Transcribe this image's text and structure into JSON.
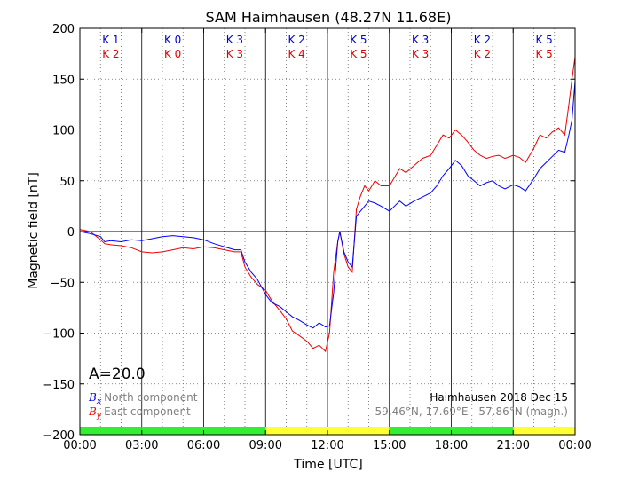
{
  "chart_data": {
    "type": "line",
    "title": "SAM Haimhausen (48.27N 11.68E)",
    "xlabel": "Time [UTC]",
    "ylabel": "Magnetic field [nT]",
    "x_unit": "hours UTC",
    "xlim": [
      0,
      24
    ],
    "ylim": [
      -200,
      200
    ],
    "x_ticks": [
      0,
      3,
      6,
      9,
      12,
      15,
      18,
      21,
      24
    ],
    "x_tick_labels": [
      "00:00",
      "03:00",
      "06:00",
      "09:00",
      "12:00",
      "15:00",
      "18:00",
      "21:00",
      "00:00"
    ],
    "y_ticks": [
      -200,
      -150,
      -100,
      -50,
      0,
      50,
      100,
      150,
      200
    ],
    "y_tick_labels": [
      "−200",
      "−150",
      "−100",
      "−50",
      "0",
      "50",
      "100",
      "150",
      "200"
    ],
    "grid": true,
    "k_index": {
      "row1": [
        "K 1",
        "K 0",
        "K 3",
        "K 2",
        "K 5",
        "K 3",
        "K 2",
        "K 5"
      ],
      "row2": [
        "K 2",
        "K 0",
        "K 3",
        "K 4",
        "K 5",
        "K 3",
        "K 2",
        "K 5"
      ],
      "row1_color": "#0000cc",
      "row2_color": "#dd0000"
    },
    "activity_bar": [
      {
        "color": "#33ee33"
      },
      {
        "color": "#33ee33"
      },
      {
        "color": "#33ee33"
      },
      {
        "color": "#ffff33"
      },
      {
        "color": "#ffff33"
      },
      {
        "color": "#33ee33"
      },
      {
        "color": "#33ee33"
      },
      {
        "color": "#ffff33"
      }
    ],
    "series": [
      {
        "name": "North component",
        "symbol": "B",
        "subscript": "x",
        "color": "#0000ff",
        "x": [
          0,
          0.5,
          1.0,
          1.2,
          1.5,
          2,
          2.5,
          3,
          3.5,
          4,
          4.5,
          5,
          5.5,
          6,
          6.5,
          7,
          7.5,
          7.8,
          8,
          8.3,
          8.6,
          9,
          9.3,
          9.7,
          10,
          10.3,
          10.6,
          11,
          11.3,
          11.6,
          11.9,
          12.1,
          12.3,
          12.5,
          12.6,
          12.8,
          13.0,
          13.2,
          13.4,
          13.6,
          13.8,
          14,
          14.3,
          14.6,
          15,
          15.3,
          15.5,
          15.8,
          16.2,
          16.6,
          17,
          17.3,
          17.6,
          17.9,
          18.2,
          18.5,
          18.8,
          19.1,
          19.4,
          19.7,
          20,
          20.3,
          20.6,
          21,
          21.3,
          21.6,
          22,
          22.3,
          22.6,
          22.9,
          23.2,
          23.5,
          23.7,
          23.85,
          24
        ],
        "y": [
          0,
          -2,
          -5,
          -10,
          -9,
          -10,
          -8,
          -9,
          -7,
          -5,
          -4,
          -5,
          -6,
          -8,
          -12,
          -15,
          -18,
          -18,
          -30,
          -40,
          -47,
          -62,
          -70,
          -74,
          -79,
          -84,
          -87,
          -92,
          -95,
          -90,
          -94,
          -93,
          -60,
          -10,
          0,
          -20,
          -30,
          -35,
          15,
          20,
          25,
          30,
          28,
          25,
          20,
          26,
          30,
          25,
          30,
          34,
          38,
          45,
          55,
          62,
          70,
          65,
          55,
          50,
          45,
          48,
          50,
          45,
          42,
          46,
          44,
          40,
          52,
          62,
          68,
          74,
          80,
          78,
          95,
          110,
          148
        ]
      },
      {
        "name": "East component",
        "symbol": "B",
        "subscript": "y",
        "color": "#ee0000",
        "x": [
          0,
          0.5,
          1.0,
          1.2,
          1.5,
          2,
          2.5,
          3,
          3.5,
          4,
          4.5,
          5,
          5.5,
          6,
          6.5,
          7,
          7.5,
          7.8,
          8,
          8.3,
          8.6,
          9,
          9.3,
          9.7,
          10,
          10.3,
          10.6,
          11,
          11.3,
          11.6,
          11.9,
          12.1,
          12.3,
          12.5,
          12.6,
          12.8,
          13.0,
          13.2,
          13.4,
          13.6,
          13.8,
          14,
          14.3,
          14.6,
          15,
          15.3,
          15.5,
          15.8,
          16.2,
          16.6,
          17,
          17.3,
          17.6,
          17.9,
          18.2,
          18.5,
          18.8,
          19.1,
          19.4,
          19.7,
          20,
          20.3,
          20.6,
          21,
          21.3,
          21.6,
          22,
          22.3,
          22.6,
          22.9,
          23.2,
          23.5,
          23.7,
          23.85,
          24
        ],
        "y": [
          2,
          0,
          -8,
          -12,
          -13,
          -14,
          -16,
          -20,
          -21,
          -20,
          -18,
          -16,
          -17,
          -15,
          -16,
          -18,
          -20,
          -20,
          -35,
          -45,
          -52,
          -58,
          -68,
          -78,
          -86,
          -98,
          -102,
          -108,
          -115,
          -112,
          -118,
          -100,
          -40,
          -10,
          0,
          -22,
          -35,
          -40,
          22,
          35,
          45,
          40,
          50,
          45,
          45,
          55,
          62,
          58,
          65,
          72,
          75,
          85,
          95,
          92,
          100,
          95,
          88,
          80,
          75,
          72,
          74,
          75,
          72,
          75,
          73,
          68,
          82,
          95,
          92,
          98,
          102,
          95,
          125,
          150,
          172
        ]
      }
    ],
    "annotations": {
      "amplitude": "A=20.0",
      "station_date": "Haimhausen 2018 Dec 15",
      "coords": "59.46°N, 17.69°E - 57.86°N (magn.)"
    }
  }
}
